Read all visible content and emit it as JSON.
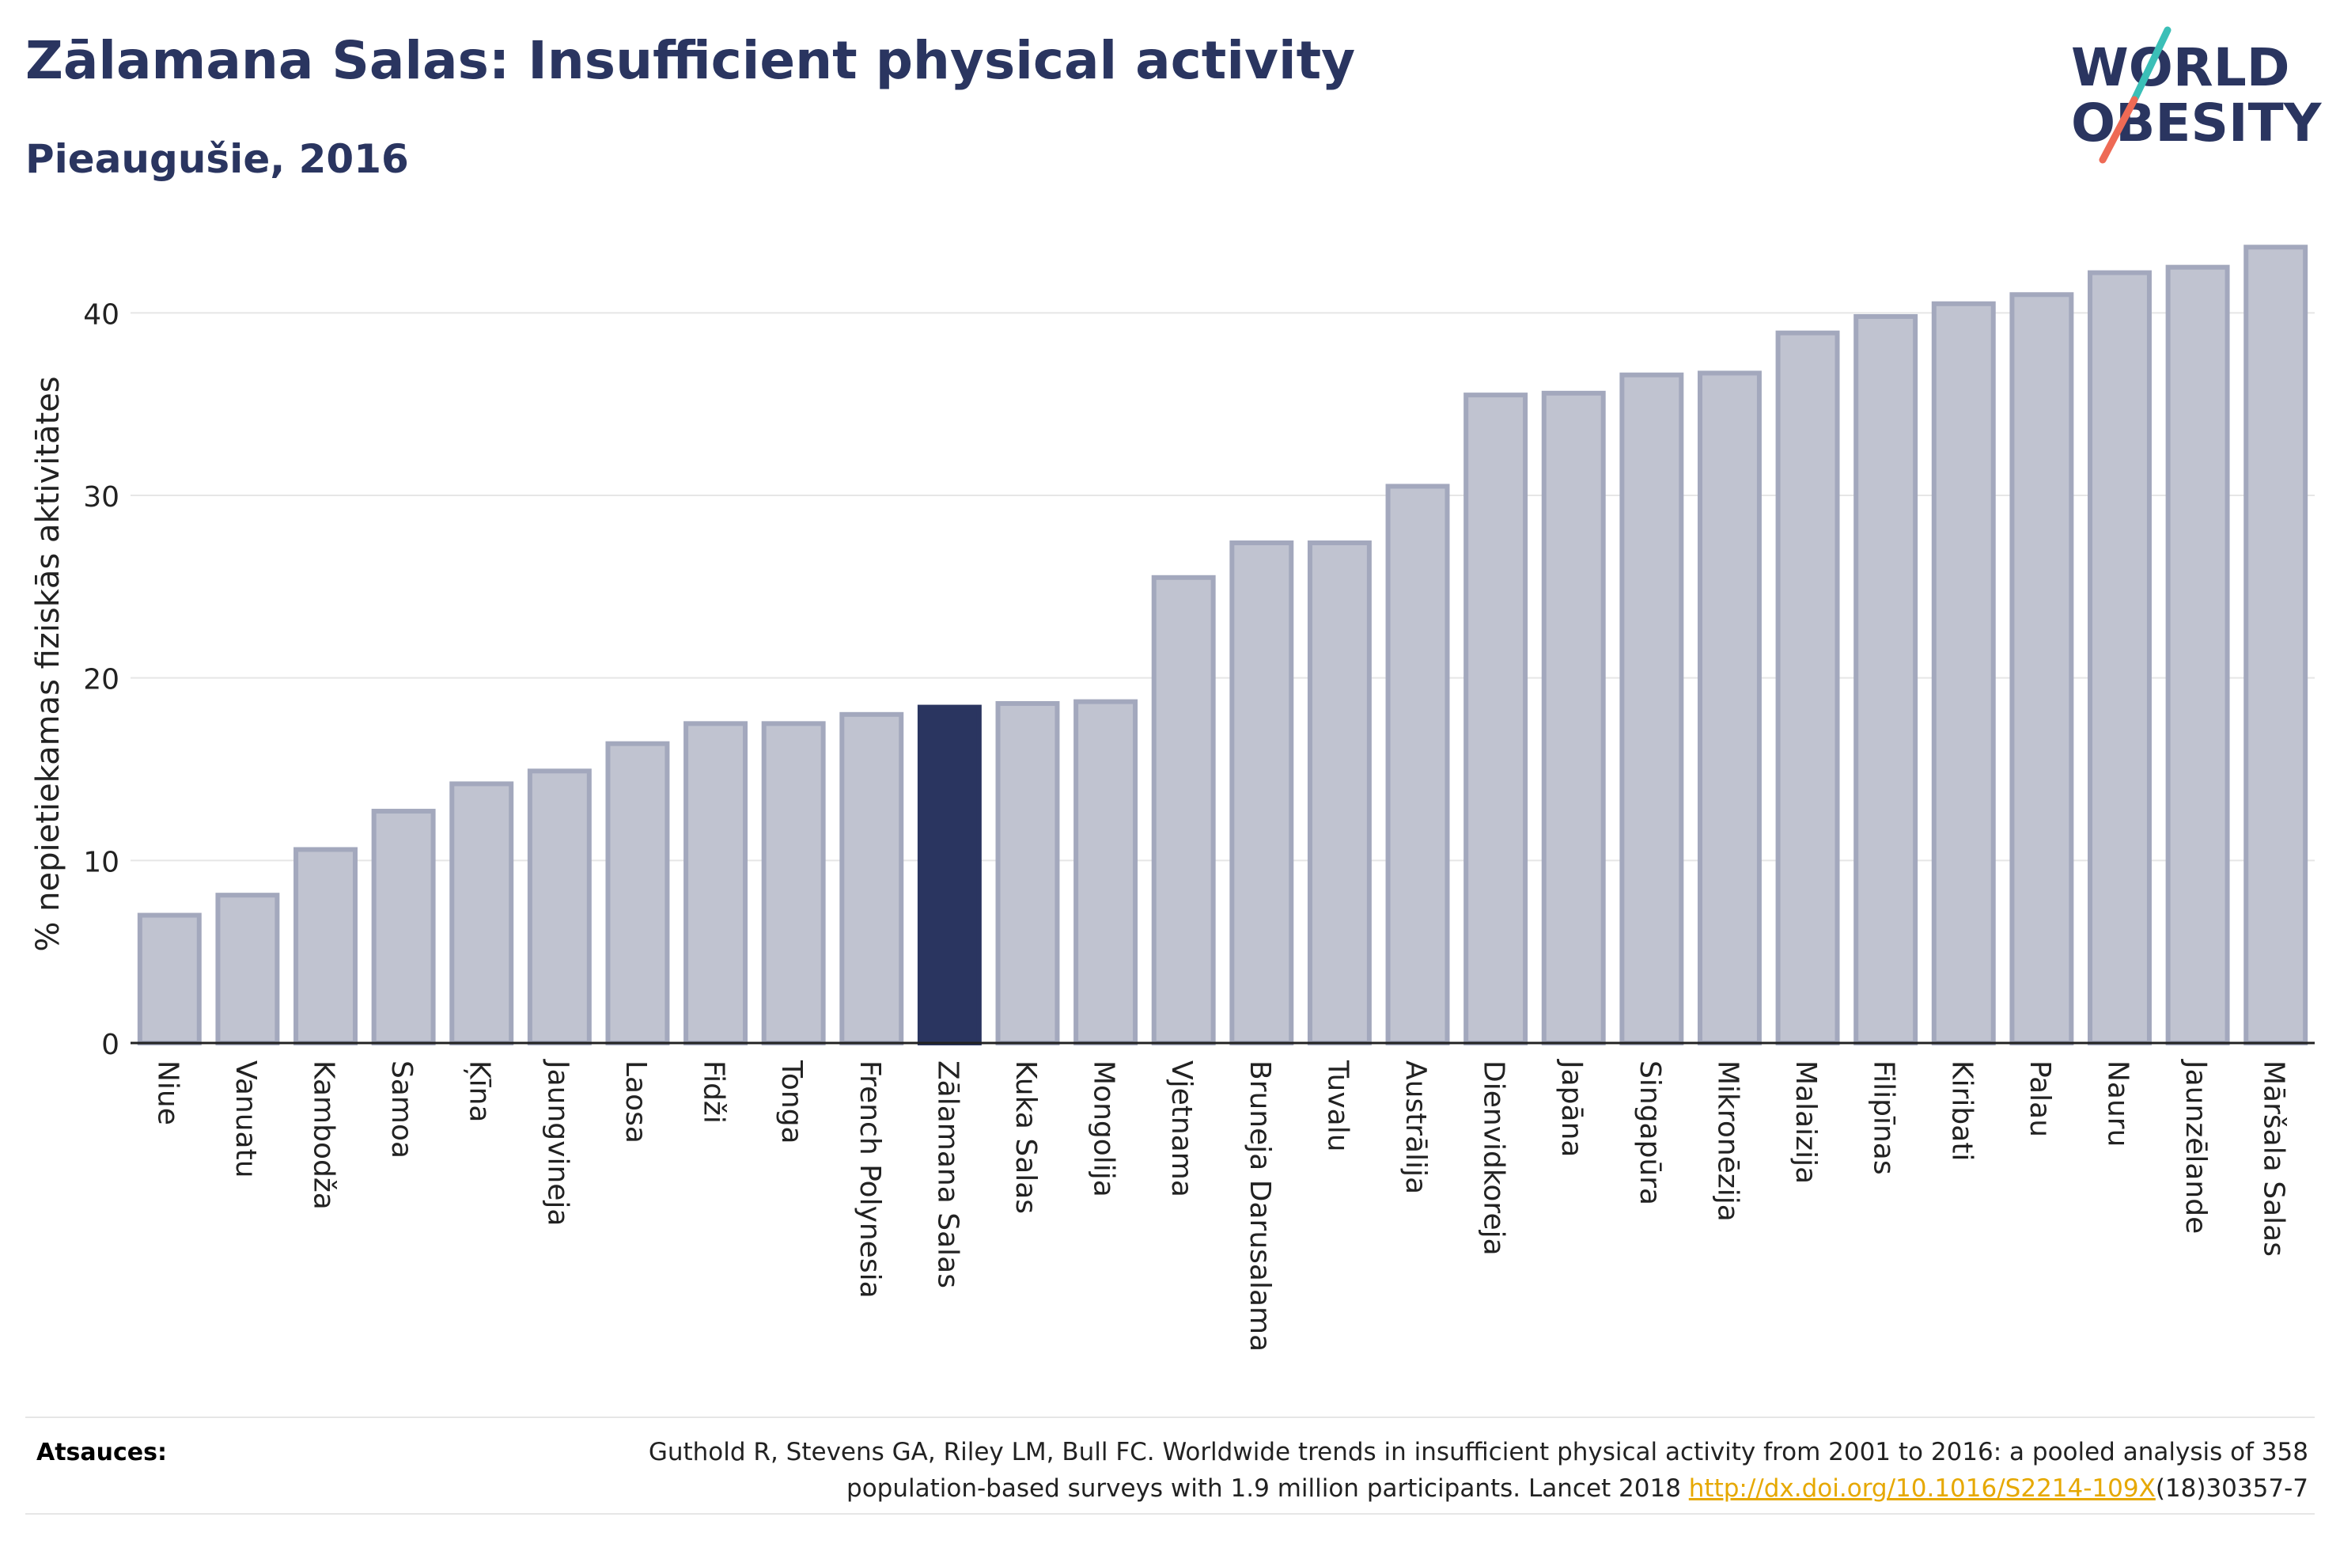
{
  "header": {
    "title": "Zālamana Salas: Insufficient physical activity",
    "subtitle": "Pieaugušie, 2016"
  },
  "logo": {
    "line1": "WORLD",
    "line2": "OBESITY",
    "icon": "world-obesity-logo"
  },
  "colors": {
    "bar": "#c0c3d0",
    "bar_border": "#a3a8bd",
    "highlight": "#2a3560",
    "text": "#2a3560",
    "link": "#e6a800"
  },
  "chart_data": {
    "type": "bar",
    "ylabel": "% nepietiekamas fiziskās aktivitātes",
    "ylim": [
      0,
      45
    ],
    "yticks": [
      0,
      10,
      20,
      30,
      40
    ],
    "grid": true,
    "highlight": "Zālamana Salas",
    "categories": [
      "Niue",
      "Vanuatu",
      "Kambodža",
      "Samoa",
      "Ķīna",
      "Jaungvineja",
      "Laosa",
      "Fidži",
      "Tonga",
      "French Polynesia",
      "Zālamana Salas",
      "Kuka Salas",
      "Mongolija",
      "Vjetnama",
      "Bruneja Darusalama",
      "Tuvalu",
      "Austrālija",
      "Dienvidkoreja",
      "Japāna",
      "Singapūra",
      "Mikronēzija",
      "Malaizija",
      "Filipīnas",
      "Kiribati",
      "Palau",
      "Nauru",
      "Jaunzēlande",
      "Māršala Salas"
    ],
    "values": [
      7.0,
      8.1,
      10.6,
      12.7,
      14.2,
      14.9,
      16.4,
      17.5,
      17.5,
      18.0,
      18.4,
      18.6,
      18.7,
      25.5,
      27.4,
      27.4,
      30.5,
      35.5,
      35.6,
      36.6,
      36.7,
      38.9,
      39.8,
      40.5,
      41.0,
      42.2,
      42.5,
      43.6
    ]
  },
  "sources": {
    "label": "Atsauces:",
    "line1": "Guthold R, Stevens GA, Riley LM, Bull FC. Worldwide trends in insufficient physical activity from 2001 to 2016: a pooled analysis of 358",
    "line2_pre": "population-based surveys with 1.9 million participants. Lancet 2018 ",
    "link": "http://dx.doi.org/10.1016/S2214-109X",
    "line2_post": "(18)30357-7"
  }
}
